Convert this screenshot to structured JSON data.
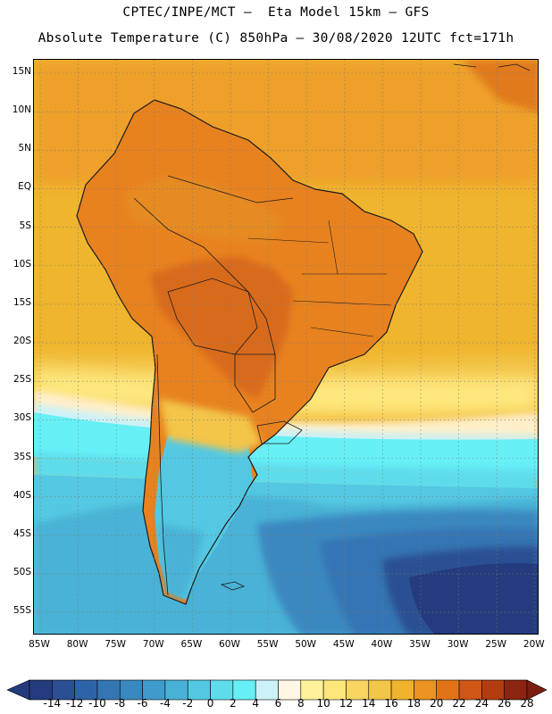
{
  "header": {
    "line1": "CPTEC/INPE/MCT –  Eta Model 15km – GFS",
    "line2": "Absolute Temperature (C) 850hPa – 30/08/2020 12UTC fct=171h"
  },
  "axes": {
    "lat_labels": [
      "15N",
      "10N",
      "5N",
      "EQ",
      "5S",
      "10S",
      "15S",
      "20S",
      "25S",
      "30S",
      "35S",
      "40S",
      "45S",
      "50S",
      "55S"
    ],
    "lon_labels": [
      "85W",
      "80W",
      "75W",
      "70W",
      "65W",
      "60W",
      "55W",
      "50W",
      "45W",
      "40W",
      "35W",
      "30W",
      "25W",
      "20W"
    ]
  },
  "colorbar": {
    "labels": [
      "-14",
      "-12",
      "-10",
      "-8",
      "-6",
      "-4",
      "-2",
      "0",
      "2",
      "4",
      "6",
      "8",
      "10",
      "12",
      "14",
      "16",
      "18",
      "20",
      "22",
      "24",
      "26",
      "28"
    ],
    "colors": [
      "#243b7d",
      "#2b4f93",
      "#2f63a7",
      "#3475b3",
      "#3a88c0",
      "#3f9bcb",
      "#48b2d6",
      "#54c8e2",
      "#5fdcec",
      "#66f0f6",
      "#ccf2f8",
      "#fff6e3",
      "#fff29a",
      "#fde67b",
      "#f8d560",
      "#f3c548",
      "#f0b32e",
      "#eb9320",
      "#e27418",
      "#cf5614",
      "#b23d10",
      "#8b2410"
    ],
    "under_color": "#243b7d",
    "over_color": "#7a1e10"
  },
  "map": {
    "ocean_color": "#f0b52e",
    "land_color": "#e8821f",
    "interior_hot_color": "#d86a1e",
    "border_color": "#1a1a1a"
  }
}
